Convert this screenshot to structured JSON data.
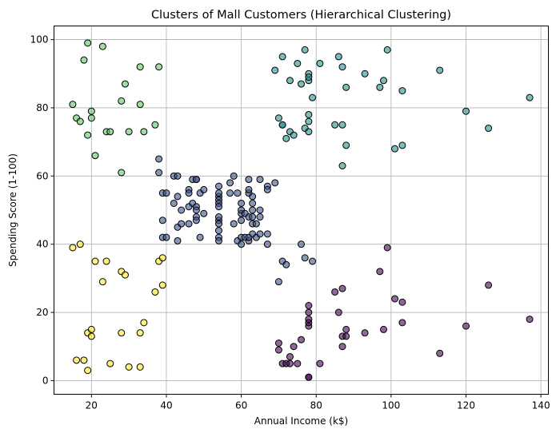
{
  "chart_data": {
    "type": "scatter",
    "title": "Clusters of Mall Customers (Hierarchical Clustering)",
    "xlabel": "Annual Income (k$)",
    "ylabel": "Spending Score (1-100)",
    "xlim": [
      10,
      142
    ],
    "ylim": [
      -4,
      104
    ],
    "xticks": [
      20,
      40,
      60,
      80,
      100,
      120,
      140
    ],
    "yticks": [
      0,
      20,
      40,
      60,
      80,
      100
    ],
    "grid": true,
    "series": [
      {
        "color": "#440154",
        "points": [
          [
            70,
            9
          ],
          [
            70,
            11
          ],
          [
            71,
            5
          ],
          [
            72,
            5
          ],
          [
            73,
            7
          ],
          [
            73,
            5
          ],
          [
            74,
            10
          ],
          [
            75,
            5
          ],
          [
            76,
            12
          ],
          [
            78,
            1
          ],
          [
            78,
            1
          ],
          [
            78,
            16
          ],
          [
            78,
            17
          ],
          [
            78,
            20
          ],
          [
            78,
            22
          ],
          [
            78,
            18
          ],
          [
            81,
            5
          ],
          [
            85,
            26
          ],
          [
            86,
            20
          ],
          [
            87,
            27
          ],
          [
            87,
            13
          ],
          [
            87,
            10
          ],
          [
            88,
            13
          ],
          [
            88,
            15
          ],
          [
            93,
            14
          ],
          [
            97,
            32
          ],
          [
            98,
            15
          ],
          [
            99,
            39
          ],
          [
            101,
            24
          ],
          [
            103,
            23
          ],
          [
            103,
            17
          ],
          [
            113,
            8
          ],
          [
            120,
            16
          ],
          [
            126,
            28
          ],
          [
            137,
            18
          ]
        ]
      },
      {
        "color": "#3b528b",
        "points": [
          [
            38,
            65
          ],
          [
            38,
            61
          ],
          [
            39,
            42
          ],
          [
            39,
            55
          ],
          [
            39,
            47
          ],
          [
            40,
            42
          ],
          [
            40,
            55
          ],
          [
            42,
            52
          ],
          [
            42,
            60
          ],
          [
            43,
            60
          ],
          [
            43,
            54
          ],
          [
            43,
            45
          ],
          [
            43,
            41
          ],
          [
            44,
            50
          ],
          [
            44,
            46
          ],
          [
            46,
            51
          ],
          [
            46,
            46
          ],
          [
            46,
            56
          ],
          [
            46,
            55
          ],
          [
            47,
            52
          ],
          [
            47,
            59
          ],
          [
            48,
            51
          ],
          [
            48,
            59
          ],
          [
            48,
            50
          ],
          [
            48,
            48
          ],
          [
            48,
            59
          ],
          [
            48,
            47
          ],
          [
            49,
            55
          ],
          [
            49,
            42
          ],
          [
            50,
            49
          ],
          [
            50,
            56
          ],
          [
            54,
            47
          ],
          [
            54,
            54
          ],
          [
            54,
            53
          ],
          [
            54,
            48
          ],
          [
            54,
            52
          ],
          [
            54,
            42
          ],
          [
            54,
            51
          ],
          [
            54,
            55
          ],
          [
            54,
            41
          ],
          [
            54,
            44
          ],
          [
            54,
            57
          ],
          [
            54,
            46
          ],
          [
            57,
            58
          ],
          [
            57,
            55
          ],
          [
            58,
            60
          ],
          [
            58,
            46
          ],
          [
            59,
            55
          ],
          [
            59,
            41
          ],
          [
            60,
            49
          ],
          [
            60,
            40
          ],
          [
            60,
            42
          ],
          [
            60,
            52
          ],
          [
            60,
            47
          ],
          [
            60,
            50
          ],
          [
            61,
            42
          ],
          [
            61,
            49
          ],
          [
            62,
            41
          ],
          [
            62,
            48
          ],
          [
            62,
            59
          ],
          [
            62,
            55
          ],
          [
            62,
            56
          ],
          [
            62,
            42
          ],
          [
            63,
            50
          ],
          [
            63,
            46
          ],
          [
            63,
            43
          ],
          [
            63,
            48
          ],
          [
            63,
            52
          ],
          [
            63,
            54
          ],
          [
            64,
            42
          ],
          [
            64,
            46
          ],
          [
            65,
            48
          ],
          [
            65,
            50
          ],
          [
            65,
            43
          ],
          [
            65,
            59
          ],
          [
            67,
            43
          ],
          [
            67,
            57
          ],
          [
            67,
            56
          ],
          [
            67,
            40
          ],
          [
            69,
            58
          ],
          [
            71,
            35
          ],
          [
            72,
            34
          ],
          [
            76,
            40
          ],
          [
            77,
            36
          ],
          [
            79,
            35
          ],
          [
            70,
            29
          ]
        ]
      },
      {
        "color": "#21918c",
        "points": [
          [
            69,
            91
          ],
          [
            70,
            77
          ],
          [
            71,
            95
          ],
          [
            71,
            75
          ],
          [
            71,
            75
          ],
          [
            72,
            71
          ],
          [
            73,
            88
          ],
          [
            73,
            73
          ],
          [
            74,
            72
          ],
          [
            75,
            93
          ],
          [
            76,
            87
          ],
          [
            77,
            97
          ],
          [
            77,
            74
          ],
          [
            78,
            90
          ],
          [
            78,
            88
          ],
          [
            78,
            76
          ],
          [
            78,
            89
          ],
          [
            78,
            78
          ],
          [
            78,
            73
          ],
          [
            79,
            83
          ],
          [
            81,
            93
          ],
          [
            85,
            75
          ],
          [
            86,
            95
          ],
          [
            87,
            63
          ],
          [
            87,
            75
          ],
          [
            87,
            92
          ],
          [
            88,
            86
          ],
          [
            88,
            69
          ],
          [
            93,
            90
          ],
          [
            97,
            86
          ],
          [
            98,
            88
          ],
          [
            99,
            97
          ],
          [
            101,
            68
          ],
          [
            103,
            85
          ],
          [
            103,
            69
          ],
          [
            113,
            91
          ],
          [
            120,
            79
          ],
          [
            126,
            74
          ],
          [
            137,
            83
          ]
        ]
      },
      {
        "color": "#5ec962",
        "points": [
          [
            15,
            81
          ],
          [
            16,
            77
          ],
          [
            17,
            76
          ],
          [
            18,
            94
          ],
          [
            19,
            72
          ],
          [
            19,
            99
          ],
          [
            20,
            77
          ],
          [
            20,
            79
          ],
          [
            21,
            66
          ],
          [
            23,
            98
          ],
          [
            24,
            73
          ],
          [
            25,
            73
          ],
          [
            28,
            82
          ],
          [
            28,
            61
          ],
          [
            29,
            87
          ],
          [
            30,
            73
          ],
          [
            33,
            92
          ],
          [
            33,
            81
          ],
          [
            34,
            73
          ],
          [
            37,
            75
          ],
          [
            38,
            92
          ]
        ]
      },
      {
        "color": "#fde725",
        "points": [
          [
            15,
            39
          ],
          [
            16,
            6
          ],
          [
            17,
            40
          ],
          [
            18,
            6
          ],
          [
            19,
            3
          ],
          [
            19,
            14
          ],
          [
            20,
            15
          ],
          [
            20,
            13
          ],
          [
            21,
            35
          ],
          [
            23,
            29
          ],
          [
            24,
            35
          ],
          [
            25,
            5
          ],
          [
            28,
            14
          ],
          [
            28,
            32
          ],
          [
            29,
            31
          ],
          [
            30,
            4
          ],
          [
            33,
            4
          ],
          [
            33,
            14
          ],
          [
            34,
            17
          ],
          [
            37,
            26
          ],
          [
            38,
            35
          ],
          [
            39,
            36
          ],
          [
            39,
            28
          ]
        ]
      }
    ]
  }
}
